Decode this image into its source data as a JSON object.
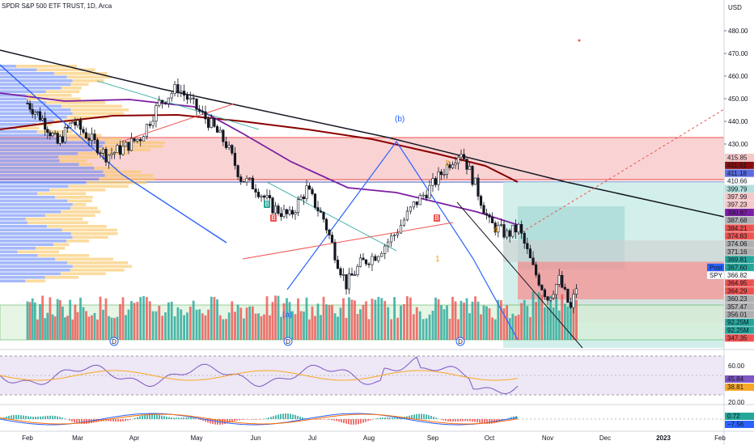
{
  "title": "SPDR S&P 500 ETF TRUST, 1D, Arca",
  "currency": "USD",
  "chart_data": [
    {
      "type": "candlestick",
      "symbol": "SPY",
      "title": "SPDR S&P 500 ETF TRUST, 1D, Arca",
      "x_ticks": [
        "Feb",
        "Mar",
        "Apr",
        "May",
        "Jun",
        "Jul",
        "Aug",
        "Sep",
        "Oct",
        "Nov",
        "Dec",
        "2023",
        "Feb"
      ],
      "y_ticks": [
        480,
        470,
        460,
        450,
        440,
        430
      ],
      "ylim": [
        340,
        490
      ],
      "approx_closes": [
        {
          "m": 0.0,
          "v": 448
        },
        {
          "m": 0.3,
          "v": 441
        },
        {
          "m": 0.6,
          "v": 430
        },
        {
          "m": 0.9,
          "v": 440
        },
        {
          "m": 1.2,
          "v": 433
        },
        {
          "m": 1.5,
          "v": 425
        },
        {
          "m": 1.8,
          "v": 428
        },
        {
          "m": 2.1,
          "v": 433
        },
        {
          "m": 2.4,
          "v": 448
        },
        {
          "m": 2.7,
          "v": 455
        },
        {
          "m": 2.95,
          "v": 447
        },
        {
          "m": 3.2,
          "v": 440
        },
        {
          "m": 3.5,
          "v": 430
        },
        {
          "m": 3.75,
          "v": 415
        },
        {
          "m": 4.0,
          "v": 411
        },
        {
          "m": 4.3,
          "v": 402
        },
        {
          "m": 4.6,
          "v": 398
        },
        {
          "m": 4.9,
          "v": 410
        },
        {
          "m": 5.2,
          "v": 397
        },
        {
          "m": 5.45,
          "v": 378
        },
        {
          "m": 5.6,
          "v": 368
        },
        {
          "m": 5.85,
          "v": 377
        },
        {
          "m": 6.1,
          "v": 381
        },
        {
          "m": 6.4,
          "v": 390
        },
        {
          "m": 6.7,
          "v": 403
        },
        {
          "m": 7.0,
          "v": 412
        },
        {
          "m": 7.3,
          "v": 422
        },
        {
          "m": 7.5,
          "v": 427
        },
        {
          "m": 7.75,
          "v": 412
        },
        {
          "m": 8.0,
          "v": 395
        },
        {
          "m": 8.3,
          "v": 390
        },
        {
          "m": 8.5,
          "v": 393
        },
        {
          "m": 8.75,
          "v": 375
        },
        {
          "m": 9.0,
          "v": 362
        },
        {
          "m": 9.2,
          "v": 370
        },
        {
          "m": 9.4,
          "v": 357
        },
        {
          "m": 9.5,
          "v": 367
        }
      ],
      "volume_panel": {
        "labels": [
          "92.25M",
          "92.25M"
        ]
      },
      "price_labels": [
        {
          "text": "415.85",
          "color": "#f7c8c8",
          "text_color": "#131722"
        },
        {
          "text": "411.61",
          "color": "#880e0e",
          "text_color": "#ffffff"
        },
        {
          "text": "411.18",
          "color": "#5b6be0",
          "text_color": "#ffffff"
        },
        {
          "text": "410.66",
          "color": "#ffffff",
          "text_color": "#131722"
        },
        {
          "text": "399.79",
          "color": "#b2dfdb",
          "text_color": "#131722"
        },
        {
          "text": "397.99",
          "color": "#f7c8c8",
          "text_color": "#c62828"
        },
        {
          "text": "397.23",
          "color": "#f7c8c8",
          "text_color": "#c62828"
        },
        {
          "text": "390.87",
          "color": "#7b1fa2",
          "text_color": "#ffffff"
        },
        {
          "text": "387.68",
          "color": "#b0b0b0",
          "text_color": "#131722"
        },
        {
          "text": "384.21",
          "color": "#ef5350",
          "text_color": "#ffffff"
        },
        {
          "text": "374.83",
          "color": "#ef5350",
          "text_color": "#ffffff"
        },
        {
          "text": "374.06",
          "color": "#b0b0b0",
          "text_color": "#131722"
        },
        {
          "text": "371.16",
          "color": "#b0b0b0",
          "text_color": "#131722"
        },
        {
          "text": "369.81",
          "color": "#26a69a",
          "text_color": "#ffffff"
        },
        {
          "text": "367.60",
          "color": "#26a69a",
          "text_color": "#ffffff"
        },
        {
          "text": "366.82",
          "color": "#ffffff",
          "text_color": "#131722"
        },
        {
          "text": "364.95",
          "color": "#ef5350",
          "text_color": "#ffffff"
        },
        {
          "text": "364.29",
          "color": "#ef5350",
          "text_color": "#ffffff"
        },
        {
          "text": "360.23",
          "color": "#b0b0b0",
          "text_color": "#131722"
        },
        {
          "text": "357.47",
          "color": "#b0b0b0",
          "text_color": "#131722"
        },
        {
          "text": "356.01",
          "color": "#b0b0b0",
          "text_color": "#131722"
        },
        {
          "text": "92.25M",
          "color": "#26a69a",
          "text_color": "#ffffff"
        },
        {
          "text": "92.25M",
          "color": "#26a69a",
          "text_color": "#ffffff"
        },
        {
          "text": "347.35",
          "color": "#ef5350",
          "text_color": "#ffffff"
        }
      ],
      "post_label": {
        "tag": "Post",
        "symbol": "SPY"
      },
      "wave_labels": [
        "(b)",
        "2",
        "4",
        "1",
        "B",
        "B",
        "B",
        "(a)"
      ],
      "dividend_markers": [
        "D",
        "D",
        "D"
      ],
      "annotations": [
        "(b)",
        "1",
        "2",
        "4",
        "(a)"
      ]
    },
    {
      "type": "line",
      "name": "RSI",
      "y_ticks": [
        60.0,
        20.0
      ],
      "value_labels": [
        "45.84",
        "38.81"
      ]
    },
    {
      "type": "bar",
      "name": "MACD",
      "value_labels": [
        "0.72",
        "−7.56"
      ]
    }
  ],
  "colors": {
    "up": "#26a69a",
    "down": "#ef5350",
    "resistance_zone": "#f7c8c8",
    "ma_dark": "#8b0000",
    "ma_purple": "#7b1fa2",
    "trend_blue": "#2962ff",
    "rsi_band": "#ede7f6"
  }
}
